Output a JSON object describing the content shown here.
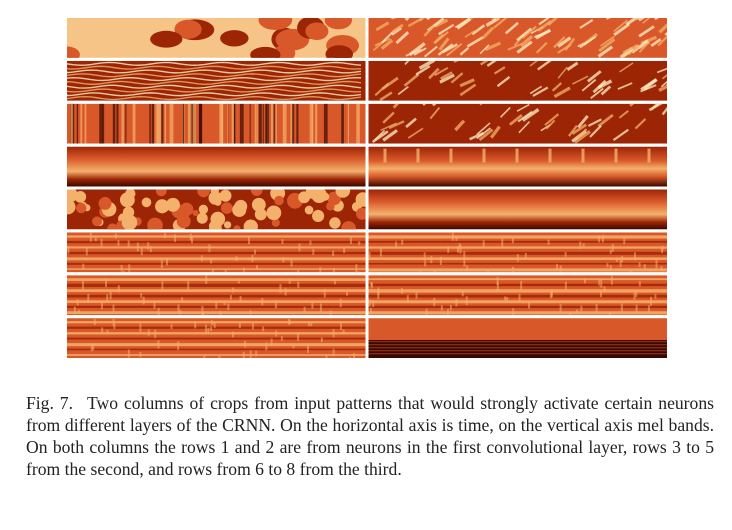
{
  "figure": {
    "columns": 2,
    "rows": 8,
    "colormap": [
      "#fff1c6",
      "#f4b16b",
      "#d9582a",
      "#9c2506",
      "#3b0800"
    ],
    "separator_color": "#ffffff",
    "crops": [
      {
        "row": 1,
        "col": 1,
        "pattern": "blobs"
      },
      {
        "row": 1,
        "col": 2,
        "pattern": "fine-texture"
      },
      {
        "row": 2,
        "col": 1,
        "pattern": "horizontal-waves"
      },
      {
        "row": 2,
        "col": 2,
        "pattern": "diagonal-blobs"
      },
      {
        "row": 3,
        "col": 1,
        "pattern": "vertical-stripes"
      },
      {
        "row": 3,
        "col": 2,
        "pattern": "diagonal-stripes"
      },
      {
        "row": 4,
        "col": 1,
        "pattern": "horizontal-band"
      },
      {
        "row": 4,
        "col": 2,
        "pattern": "band-with-ticks"
      },
      {
        "row": 5,
        "col": 1,
        "pattern": "bubbles"
      },
      {
        "row": 5,
        "col": 2,
        "pattern": "horizontal-band"
      },
      {
        "row": 6,
        "col": 1,
        "pattern": "textured-lines"
      },
      {
        "row": 6,
        "col": 2,
        "pattern": "textured-lines"
      },
      {
        "row": 7,
        "col": 1,
        "pattern": "horizontal-lines"
      },
      {
        "row": 7,
        "col": 2,
        "pattern": "horizontal-lines"
      },
      {
        "row": 8,
        "col": 1,
        "pattern": "sparse-texture"
      },
      {
        "row": 8,
        "col": 2,
        "pattern": "horizontal-stripes-dark"
      }
    ]
  },
  "caption": {
    "label": "Fig. 7.",
    "text": "Two columns of crops from input patterns that would strongly activate certain neurons from different layers of the CRNN. On the horizontal axis is time, on the vertical axis mel bands. On both columns the rows 1 and 2 are from neurons in the first convolutional layer, rows 3 to 5 from the second, and rows from 6 to 8 from the third."
  }
}
